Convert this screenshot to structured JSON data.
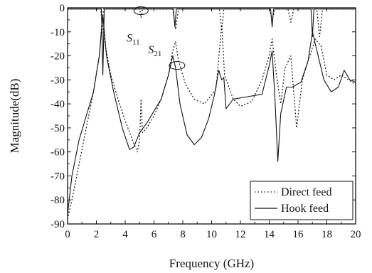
{
  "chart_data": {
    "type": "line",
    "xlabel": "Frequency (GHz)",
    "ylabel": "Magnitude(dB)",
    "xlim": [
      0,
      20
    ],
    "ylim": [
      -90,
      0
    ],
    "xticks": [
      0,
      2,
      4,
      6,
      8,
      10,
      12,
      14,
      16,
      18,
      20
    ],
    "yticks": [
      0,
      -10,
      -20,
      -30,
      -40,
      -50,
      -60,
      -70,
      -80,
      -90
    ],
    "grid": false,
    "legend_position": "bottom-right",
    "annotations": [
      {
        "main": "S",
        "sub": "11"
      },
      {
        "main": "S",
        "sub": "21"
      }
    ],
    "series": [
      {
        "name": "Direct feed",
        "style": "dotted",
        "curve": "S21",
        "points": [
          [
            0.0,
            -88
          ],
          [
            0.3,
            -80
          ],
          [
            0.8,
            -65
          ],
          [
            1.3,
            -50
          ],
          [
            1.8,
            -35
          ],
          [
            2.2,
            -20
          ],
          [
            2.4,
            -5
          ],
          [
            2.6,
            -15
          ],
          [
            3.0,
            -28
          ],
          [
            3.5,
            -38
          ],
          [
            4.0,
            -47
          ],
          [
            4.5,
            -55
          ],
          [
            4.85,
            -60
          ],
          [
            5.0,
            -55
          ],
          [
            5.1,
            -38
          ],
          [
            5.2,
            -52
          ],
          [
            5.5,
            -50
          ],
          [
            6.0,
            -45
          ],
          [
            6.5,
            -38
          ],
          [
            7.0,
            -28
          ],
          [
            7.3,
            -18
          ],
          [
            7.5,
            -14
          ],
          [
            7.7,
            -22
          ],
          [
            8.2,
            -32
          ],
          [
            8.8,
            -38
          ],
          [
            9.5,
            -40
          ],
          [
            10.3,
            -34
          ],
          [
            10.7,
            -7
          ],
          [
            10.9,
            -28
          ],
          [
            11.5,
            -38
          ],
          [
            12.0,
            -41
          ],
          [
            12.8,
            -39
          ],
          [
            13.5,
            -30
          ],
          [
            14.0,
            -20
          ],
          [
            14.2,
            -13
          ],
          [
            14.5,
            -28
          ],
          [
            14.8,
            -40
          ],
          [
            15.1,
            -25
          ],
          [
            15.5,
            -20
          ],
          [
            15.9,
            -50
          ],
          [
            16.3,
            -30
          ],
          [
            16.7,
            -22
          ],
          [
            17.2,
            -13
          ],
          [
            17.6,
            -16
          ],
          [
            18.0,
            -28
          ],
          [
            18.5,
            -30
          ],
          [
            19.0,
            -28
          ],
          [
            19.5,
            -30
          ],
          [
            20.0,
            -32
          ]
        ]
      },
      {
        "name": "Hook feed",
        "style": "solid",
        "curve": "S21",
        "points": [
          [
            0.0,
            -86
          ],
          [
            0.3,
            -70
          ],
          [
            0.8,
            -55
          ],
          [
            1.3,
            -45
          ],
          [
            1.8,
            -35
          ],
          [
            2.2,
            -20
          ],
          [
            2.45,
            -3
          ],
          [
            2.7,
            -20
          ],
          [
            3.2,
            -35
          ],
          [
            3.8,
            -50
          ],
          [
            4.3,
            -59
          ],
          [
            4.6,
            -58
          ],
          [
            5.0,
            -52
          ],
          [
            5.5,
            -48
          ],
          [
            6.0,
            -43
          ],
          [
            6.5,
            -38
          ],
          [
            7.0,
            -28
          ],
          [
            7.3,
            -20
          ],
          [
            7.5,
            -25
          ],
          [
            7.8,
            -40
          ],
          [
            8.3,
            -53
          ],
          [
            8.8,
            -57
          ],
          [
            9.3,
            -54
          ],
          [
            9.8,
            -46
          ],
          [
            10.2,
            -36
          ],
          [
            10.5,
            -26
          ],
          [
            10.7,
            -30
          ],
          [
            10.85,
            -29
          ],
          [
            11.0,
            -42
          ],
          [
            11.5,
            -38
          ],
          [
            12.5,
            -37
          ],
          [
            13.5,
            -36
          ],
          [
            14.0,
            -24
          ],
          [
            14.2,
            -18
          ],
          [
            14.4,
            -38
          ],
          [
            14.6,
            -64
          ],
          [
            14.8,
            -44
          ],
          [
            15.2,
            -33
          ],
          [
            15.6,
            -33
          ],
          [
            16.2,
            -31
          ],
          [
            16.7,
            -22
          ],
          [
            17.0,
            -10
          ],
          [
            17.4,
            -20
          ],
          [
            17.8,
            -30
          ],
          [
            18.3,
            -35
          ],
          [
            18.8,
            -33
          ],
          [
            19.2,
            -26
          ],
          [
            19.6,
            -30
          ],
          [
            20.0,
            -31
          ]
        ]
      },
      {
        "name": "",
        "style": "dotted",
        "curve": "S11",
        "points": [
          [
            0.0,
            -0.5
          ],
          [
            2.3,
            -0.5
          ],
          [
            2.4,
            -7
          ],
          [
            2.5,
            -0.5
          ],
          [
            5.0,
            -0.5
          ],
          [
            5.1,
            -4
          ],
          [
            5.2,
            -0.5
          ],
          [
            7.3,
            -0.5
          ],
          [
            7.5,
            -9
          ],
          [
            7.7,
            -0.5
          ],
          [
            10.55,
            -0.5
          ],
          [
            10.7,
            -9
          ],
          [
            10.85,
            -0.5
          ],
          [
            14.0,
            -0.5
          ],
          [
            14.2,
            -5
          ],
          [
            14.4,
            -0.5
          ],
          [
            15.3,
            -0.5
          ],
          [
            15.5,
            -6
          ],
          [
            15.7,
            -0.5
          ],
          [
            17.3,
            -0.5
          ],
          [
            17.5,
            -12
          ],
          [
            17.7,
            -0.5
          ],
          [
            20.0,
            -0.5
          ]
        ]
      },
      {
        "name": "",
        "style": "solid",
        "curve": "S11",
        "points": [
          [
            0.0,
            -0.5
          ],
          [
            2.35,
            -0.5
          ],
          [
            2.45,
            -28
          ],
          [
            2.55,
            -0.5
          ],
          [
            7.35,
            -0.5
          ],
          [
            7.45,
            -8
          ],
          [
            7.55,
            -0.5
          ],
          [
            14.1,
            -0.5
          ],
          [
            14.2,
            -8
          ],
          [
            14.3,
            -0.5
          ],
          [
            16.9,
            -0.5
          ],
          [
            17.0,
            -12
          ],
          [
            17.1,
            -0.5
          ],
          [
            20.0,
            -0.5
          ]
        ]
      }
    ]
  }
}
